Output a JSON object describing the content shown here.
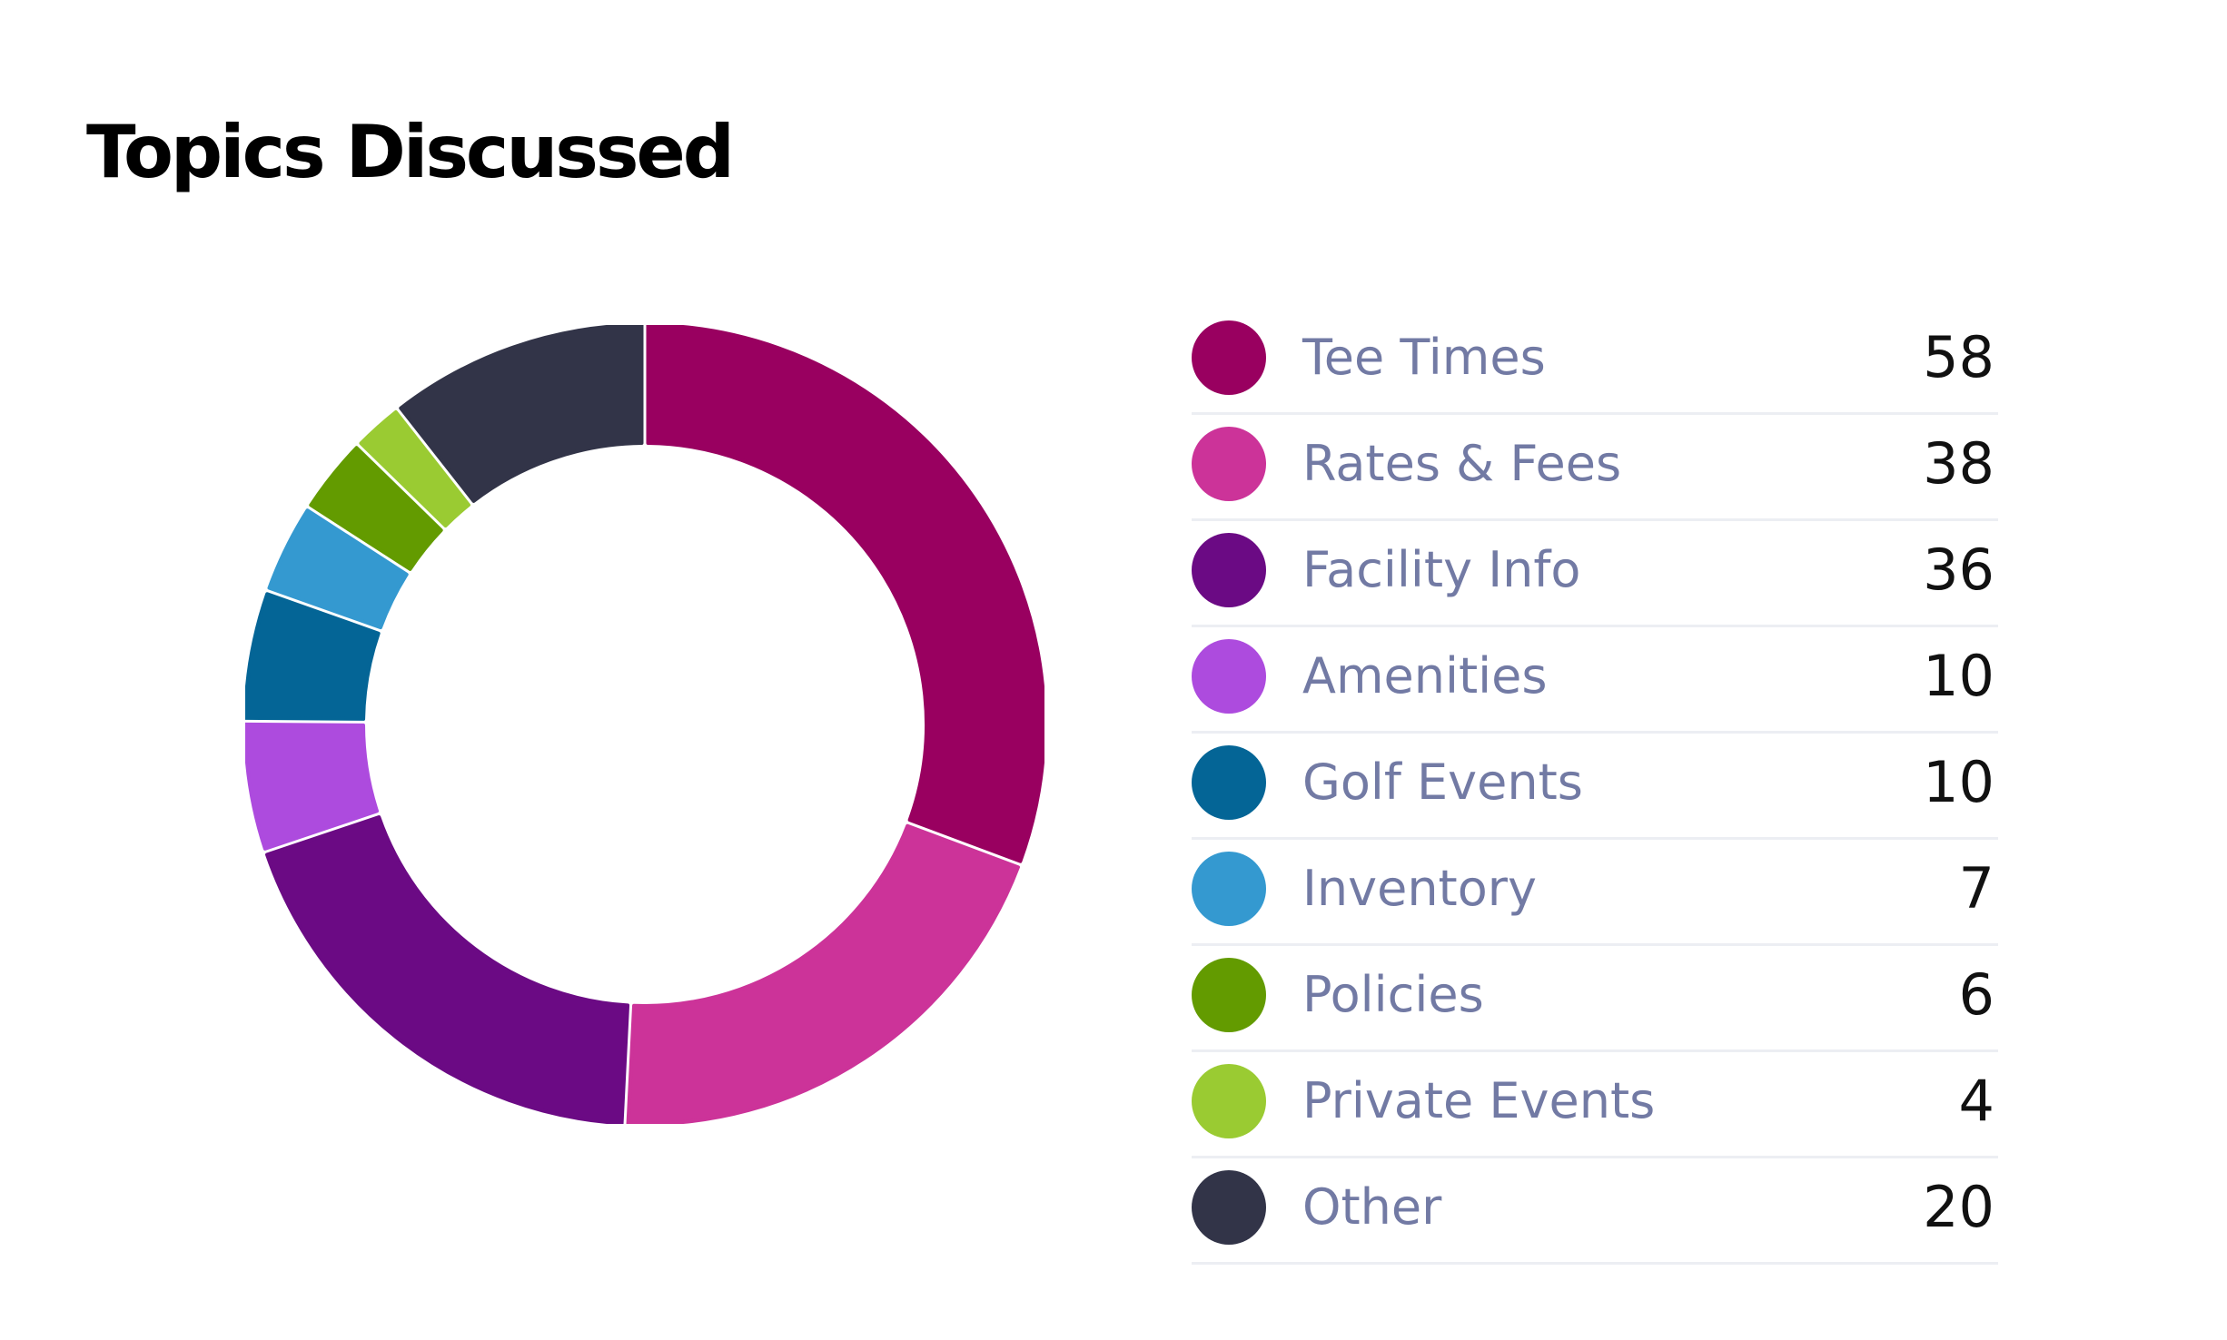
{
  "chart_data": {
    "type": "pie",
    "title": "Topics Discussed",
    "style": "donut",
    "start": "top",
    "direction": "clockwise",
    "legend": "right",
    "series": [
      {
        "name": "Tee Times",
        "value": 58,
        "color": "#990060"
      },
      {
        "name": "Rates & Fees",
        "value": 38,
        "color": "#cc3399"
      },
      {
        "name": "Facility Info",
        "value": 36,
        "color": "#6b0a84"
      },
      {
        "name": "Amenities",
        "value": 10,
        "color": "#ad4bde"
      },
      {
        "name": "Golf Events",
        "value": 10,
        "color": "#046596"
      },
      {
        "name": "Inventory",
        "value": 7,
        "color": "#3499d0"
      },
      {
        "name": "Policies",
        "value": 6,
        "color": "#639b00"
      },
      {
        "name": "Private Events",
        "value": 4,
        "color": "#9acb32"
      },
      {
        "name": "Other",
        "value": 20,
        "color": "#323448"
      }
    ]
  }
}
